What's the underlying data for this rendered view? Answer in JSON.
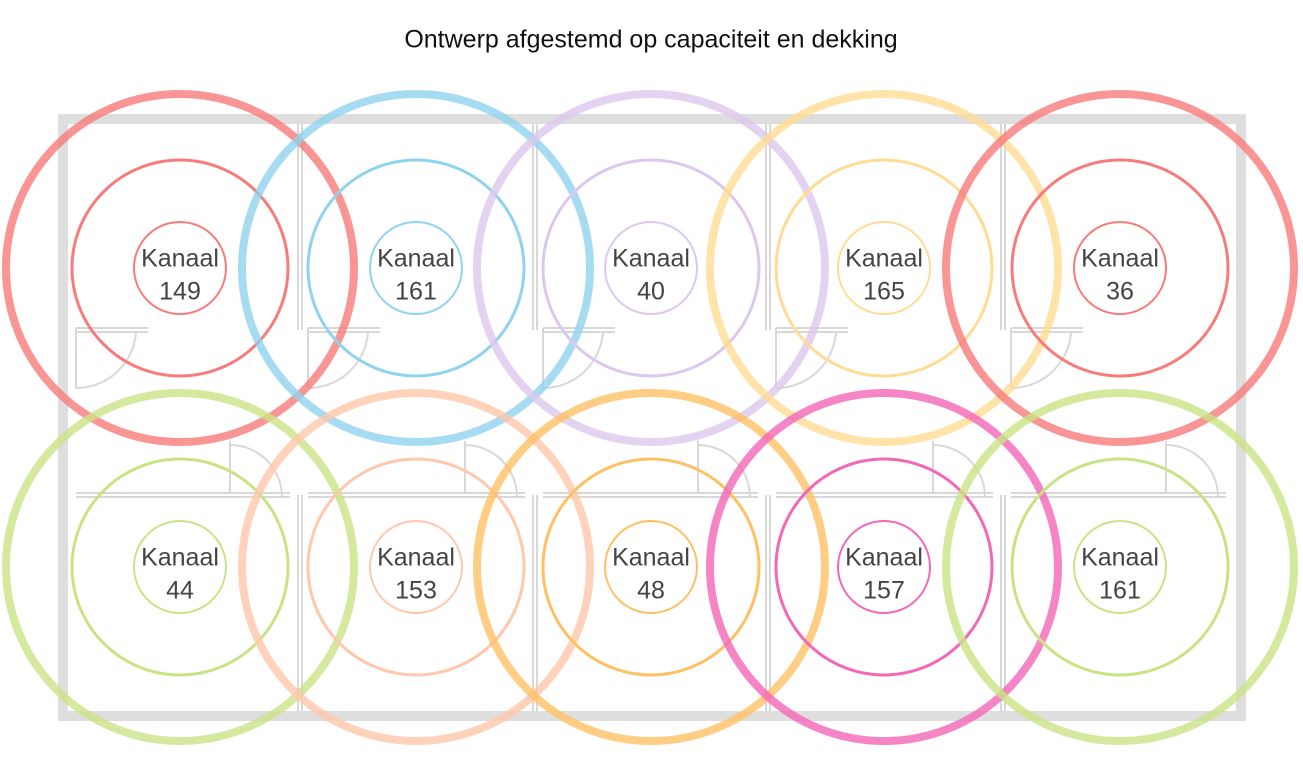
{
  "title": "Ontwerp afgestemd op capaciteit en dekking",
  "nodes": [
    {
      "label": "Kanaal",
      "channel": 149,
      "color": "#f77b7b"
    },
    {
      "label": "Kanaal",
      "channel": 161,
      "color": "#8fd3ee"
    },
    {
      "label": "Kanaal",
      "channel": 40,
      "color": "#dcc8ee"
    },
    {
      "label": "Kanaal",
      "channel": 165,
      "color": "#ffdc94"
    },
    {
      "label": "Kanaal",
      "channel": 36,
      "color": "#f77b7b"
    },
    {
      "label": "Kanaal",
      "channel": 44,
      "color": "#c9e384"
    },
    {
      "label": "Kanaal",
      "channel": 153,
      "color": "#ffc7ab"
    },
    {
      "label": "Kanaal",
      "channel": 48,
      "color": "#ffc064"
    },
    {
      "label": "Kanaal",
      "channel": 157,
      "color": "#f467b6"
    },
    {
      "label": "Kanaal",
      "channel": 161,
      "color": "#c9e384"
    }
  ]
}
